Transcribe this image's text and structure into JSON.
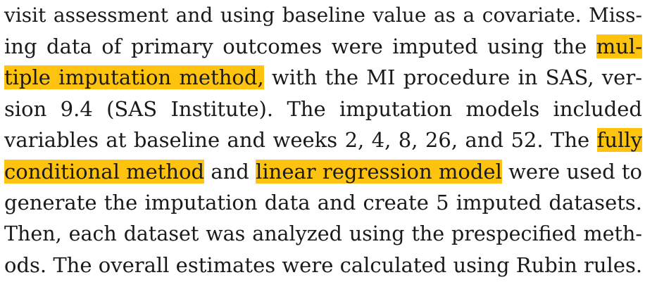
{
  "paragraph": {
    "l0": {
      "a": "visit assessment and using baseline value as a covariate. Miss-"
    },
    "l1": {
      "a": "ing data of primary outcomes were imputed using the ",
      "hl": "mul-"
    },
    "l2": {
      "hl": "tiple imputation method,",
      "b": " with the MI procedure in SAS, ver-"
    },
    "l3": {
      "a": "sion 9.4 (SAS Institute). The imputation models included"
    },
    "l4": {
      "a": "variables at baseline and weeks 2, 4, 8, 26, and 52. The ",
      "hl": "fully"
    },
    "l5": {
      "hl1": "conditional method",
      "b": " and ",
      "hl2": "linear regression model",
      "c": " were used to"
    },
    "l6": {
      "a": "generate the imputation data and create 5 imputed datasets."
    },
    "l7": {
      "a": "Then, each dataset was analyzed using the prespecified meth-"
    },
    "l8": {
      "a": "ods. The overall estimates were calculated using Rubin rules."
    }
  },
  "highlight_color": "#fdc30f"
}
